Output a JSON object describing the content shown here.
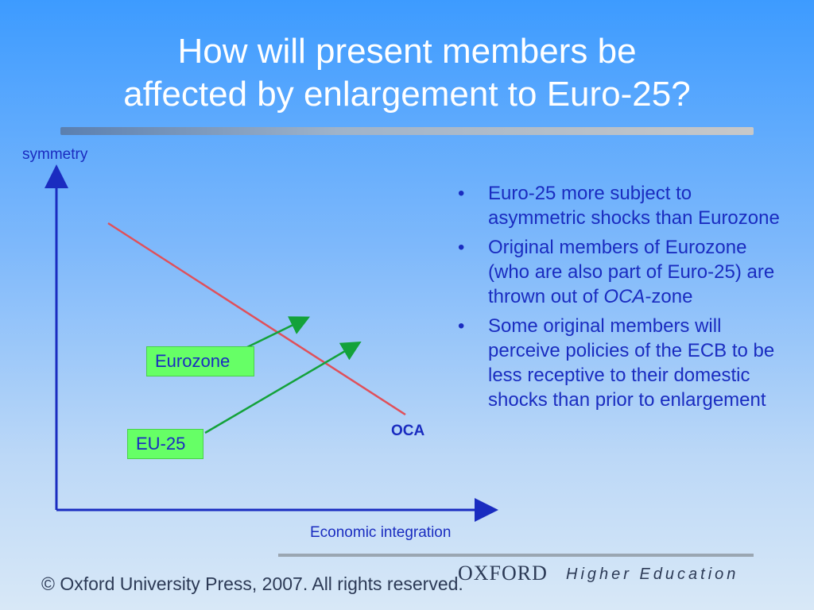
{
  "title": {
    "line1": "How will present members be",
    "line2": "affected by enlargement to Euro-25?"
  },
  "diagram": {
    "y_axis_label": "symmetry",
    "x_axis_label": "Economic integration",
    "line_label": "OCA",
    "box_eurozone": "Eurozone",
    "box_eu25": "EU-25",
    "colors": {
      "axis": "#1a2cc0",
      "oca_line": "#e0505a",
      "arrow": "#13a23a",
      "box_fill": "#66ff66"
    }
  },
  "bullets": [
    {
      "text": "Euro-25 more subject to asymmetric shocks than Eurozone"
    },
    {
      "pre": "Original members of Eurozone (who are also part of Euro-25) are thrown out of ",
      "em": "OCA",
      "post": "-zone"
    },
    {
      "text": "Some original members will perceive policies of the ECB to be less receptive to their domestic shocks than prior to enlargement"
    }
  ],
  "footer": {
    "copyright": "© Oxford University Press, 2007. All rights reserved.",
    "brand": "OXFORD",
    "brand_sub": "Higher Education"
  }
}
